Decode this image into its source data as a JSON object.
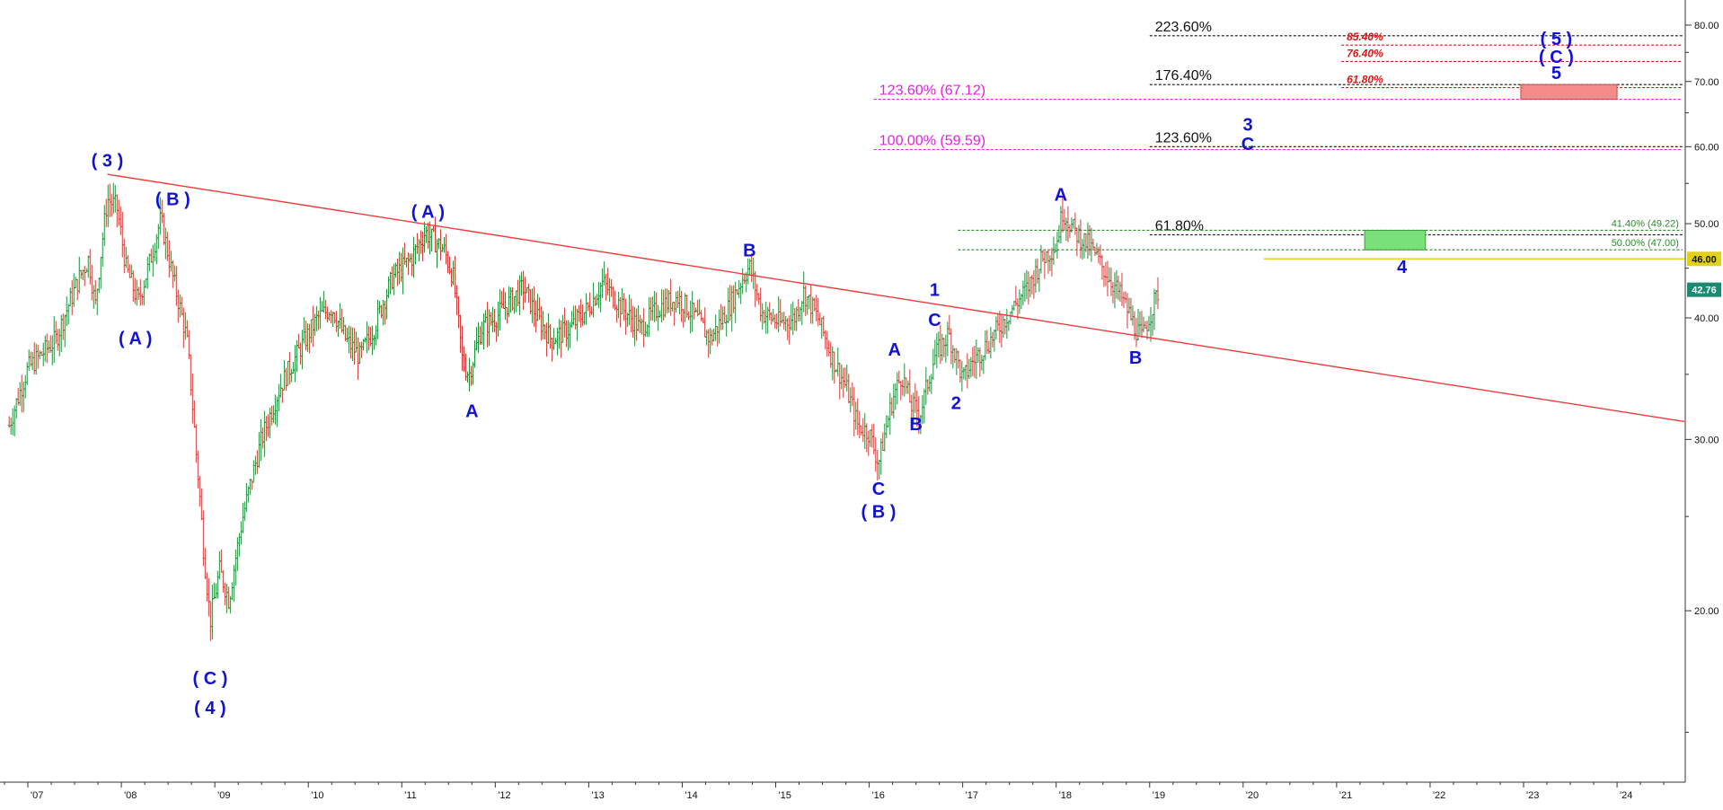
{
  "chart_data": {
    "type": "line",
    "title": "",
    "xlabel": "",
    "ylabel": "",
    "y_log_scale": true,
    "ylim": [
      13.5,
      84
    ],
    "xlim": [
      2006.75,
      2024.72
    ],
    "grid": false,
    "colors": {
      "wave_label": "#1212d4",
      "trendline": "#ee3b3b",
      "fib_black": "#111111",
      "fib_magenta": "#e21fe2",
      "fib_red": "#e01414",
      "fib_green": "#2d8a2d",
      "support": "#e0d21a",
      "last_price_bg": "#1c8a70",
      "up_bar": "#1e8f3e",
      "down_bar": "#d23a3a",
      "target_box_red": "#f48a8a",
      "target_box_green": "#7ae07a"
    },
    "x_ticks": [
      {
        "label": "'07",
        "x": 2007.0
      },
      {
        "label": "'08",
        "x": 2008.0
      },
      {
        "label": "'09",
        "x": 2009.0
      },
      {
        "label": "'10",
        "x": 2010.0
      },
      {
        "label": "'11",
        "x": 2011.0
      },
      {
        "label": "'12",
        "x": 2012.0
      },
      {
        "label": "'13",
        "x": 2013.0
      },
      {
        "label": "'14",
        "x": 2014.0
      },
      {
        "label": "'15",
        "x": 2015.0
      },
      {
        "label": "'16",
        "x": 2016.0
      },
      {
        "label": "'17",
        "x": 2017.0
      },
      {
        "label": "'18",
        "x": 2018.0
      },
      {
        "label": "'19",
        "x": 2019.0
      },
      {
        "label": "'20",
        "x": 2020.0
      },
      {
        "label": "'21",
        "x": 2021.0
      },
      {
        "label": "'22",
        "x": 2022.0
      },
      {
        "label": "'23",
        "x": 2023.0
      },
      {
        "label": "'24",
        "x": 2024.0
      }
    ],
    "y_ticks": [
      {
        "label": "20.00",
        "y": 20
      },
      {
        "label": "30.00",
        "y": 30
      },
      {
        "label": "40.00",
        "y": 40
      },
      {
        "label": "50.00",
        "y": 50
      },
      {
        "label": "60.00",
        "y": 60
      },
      {
        "label": "70.00",
        "y": 70
      },
      {
        "label": "80.00",
        "y": 80
      }
    ],
    "price_anchors": [
      [
        2006.8,
        31
      ],
      [
        2007.0,
        35.5
      ],
      [
        2007.3,
        38
      ],
      [
        2007.55,
        44
      ],
      [
        2007.65,
        46
      ],
      [
        2007.72,
        41
      ],
      [
        2007.85,
        53
      ],
      [
        2007.95,
        52
      ],
      [
        2008.05,
        45
      ],
      [
        2008.18,
        41.5
      ],
      [
        2008.3,
        45.5
      ],
      [
        2008.42,
        50.5
      ],
      [
        2008.55,
        44
      ],
      [
        2008.7,
        38
      ],
      [
        2008.8,
        29
      ],
      [
        2008.88,
        23
      ],
      [
        2008.95,
        19.5
      ],
      [
        2009.05,
        22
      ],
      [
        2009.15,
        20.5
      ],
      [
        2009.3,
        25
      ],
      [
        2009.5,
        30
      ],
      [
        2009.7,
        34
      ],
      [
        2009.9,
        37
      ],
      [
        2010.1,
        40
      ],
      [
        2010.25,
        41
      ],
      [
        2010.4,
        38
      ],
      [
        2010.55,
        36.5
      ],
      [
        2010.7,
        39
      ],
      [
        2010.9,
        44
      ],
      [
        2011.1,
        46
      ],
      [
        2011.25,
        49
      ],
      [
        2011.45,
        47
      ],
      [
        2011.55,
        44
      ],
      [
        2011.65,
        36
      ],
      [
        2011.72,
        35
      ],
      [
        2011.85,
        39
      ],
      [
        2012.0,
        40
      ],
      [
        2012.15,
        41.5
      ],
      [
        2012.3,
        43
      ],
      [
        2012.45,
        40
      ],
      [
        2012.6,
        38
      ],
      [
        2012.8,
        39
      ],
      [
        2013.0,
        41
      ],
      [
        2013.15,
        43.5
      ],
      [
        2013.35,
        41
      ],
      [
        2013.55,
        39
      ],
      [
        2013.75,
        41
      ],
      [
        2013.95,
        42
      ],
      [
        2014.15,
        40
      ],
      [
        2014.3,
        38
      ],
      [
        2014.5,
        41
      ],
      [
        2014.65,
        44
      ],
      [
        2014.72,
        45.2
      ],
      [
        2014.85,
        40.5
      ],
      [
        2015.05,
        39.5
      ],
      [
        2015.2,
        40
      ],
      [
        2015.3,
        42.5
      ],
      [
        2015.45,
        40
      ],
      [
        2015.6,
        36.5
      ],
      [
        2015.75,
        34
      ],
      [
        2015.88,
        31
      ],
      [
        2016.0,
        30.5
      ],
      [
        2016.1,
        28.3
      ],
      [
        2016.25,
        33
      ],
      [
        2016.35,
        35
      ],
      [
        2016.45,
        32.5
      ],
      [
        2016.55,
        32
      ],
      [
        2016.7,
        36.5
      ],
      [
        2016.85,
        38.5
      ],
      [
        2016.95,
        36
      ],
      [
        2017.0,
        34.5
      ],
      [
        2017.1,
        36
      ],
      [
        2017.3,
        38
      ],
      [
        2017.5,
        40.5
      ],
      [
        2017.7,
        43
      ],
      [
        2017.85,
        46
      ],
      [
        2018.0,
        47.5
      ],
      [
        2018.07,
        51.5
      ],
      [
        2018.2,
        49
      ],
      [
        2018.35,
        47.5
      ],
      [
        2018.5,
        45
      ],
      [
        2018.7,
        42
      ],
      [
        2018.85,
        39
      ],
      [
        2018.92,
        38.2
      ],
      [
        2019.05,
        41.5
      ],
      [
        2019.1,
        42.76
      ]
    ],
    "trendline": {
      "from": {
        "x": 2007.85,
        "y": 56.2
      },
      "to": {
        "x": 2024.72,
        "y": 31.3
      }
    },
    "wave_labels": [
      {
        "text": "( 3 )",
        "x": 2007.85,
        "y": 57.9
      },
      {
        "text": "( B )",
        "x": 2008.55,
        "y": 52.8
      },
      {
        "text": "( A )",
        "x": 2008.15,
        "y": 38.0
      },
      {
        "text": "( C )",
        "x": 2008.95,
        "y": 17.0
      },
      {
        "text": "( 4 )",
        "x": 2008.95,
        "y": 15.85
      },
      {
        "text": "( A )",
        "x": 2011.28,
        "y": 51.3
      },
      {
        "text": "A",
        "x": 2011.75,
        "y": 32.0
      },
      {
        "text": "B",
        "x": 2014.72,
        "y": 46.8
      },
      {
        "text": "1",
        "x": 2016.7,
        "y": 42.6
      },
      {
        "text": "C",
        "x": 2016.7,
        "y": 39.7
      },
      {
        "text": "A",
        "x": 2016.27,
        "y": 37.0
      },
      {
        "text": "B",
        "x": 2016.5,
        "y": 31.0
      },
      {
        "text": "2",
        "x": 2016.93,
        "y": 32.6
      },
      {
        "text": "C",
        "x": 2016.1,
        "y": 26.6
      },
      {
        "text": "( B )",
        "x": 2016.1,
        "y": 25.2
      },
      {
        "text": "A",
        "x": 2018.05,
        "y": 53.4
      },
      {
        "text": "B",
        "x": 2018.85,
        "y": 36.3
      },
      {
        "text": "3",
        "x": 2020.05,
        "y": 63.0
      },
      {
        "text": "C",
        "x": 2020.05,
        "y": 60.2
      },
      {
        "text": "4",
        "x": 2021.7,
        "y": 45.0
      },
      {
        "text": "( 5 )",
        "x": 2023.35,
        "y": 77.2
      },
      {
        "text": "( C )",
        "x": 2023.35,
        "y": 74.0
      },
      {
        "text": "5",
        "x": 2023.35,
        "y": 71.2
      }
    ],
    "fib_lines": [
      {
        "label": "223.60%",
        "y": 78.0,
        "x_start": 2019.0,
        "x_end": 2024.7,
        "color": "fib_black",
        "size": "normal"
      },
      {
        "label": "85.40%",
        "y": 76.3,
        "x_start": 2021.05,
        "x_end": 2024.7,
        "color": "fib_red",
        "size": "small"
      },
      {
        "label": "76.40%",
        "y": 73.4,
        "x_start": 2021.05,
        "x_end": 2024.7,
        "color": "fib_red",
        "size": "small"
      },
      {
        "label": "176.40%",
        "y": 69.5,
        "x_start": 2019.0,
        "x_end": 2024.7,
        "color": "fib_black",
        "size": "normal"
      },
      {
        "label": "61.80%",
        "y": 69.0,
        "x_start": 2021.05,
        "x_end": 2024.7,
        "color": "fib_red",
        "size": "small"
      },
      {
        "label": "123.60% (67.12)",
        "y": 67.12,
        "x_start": 2016.05,
        "x_end": 2024.7,
        "color": "fib_magenta",
        "size": "normal"
      },
      {
        "label": "123.60%",
        "y": 60.0,
        "x_start": 2019.0,
        "x_end": 2024.7,
        "color": "fib_black",
        "size": "normal"
      },
      {
        "label": "100.00% (59.59)",
        "y": 59.59,
        "x_start": 2016.05,
        "x_end": 2024.7,
        "color": "fib_magenta",
        "size": "normal"
      },
      {
        "label": "61.80%",
        "y": 48.7,
        "x_start": 2019.0,
        "x_end": 2024.7,
        "color": "fib_black",
        "size": "normal"
      },
      {
        "label": "41.40% (49.22)",
        "y": 49.22,
        "x_start": 2016.95,
        "x_end": 2024.7,
        "color": "fib_green",
        "size": "tiny",
        "label_side": "right"
      },
      {
        "label": "50.00% (47.00)",
        "y": 47.0,
        "x_start": 2016.95,
        "x_end": 2024.7,
        "color": "fib_green",
        "size": "tiny",
        "label_side": "right",
        "label_extent_x": 2019.0
      }
    ],
    "support_line": {
      "label": "46.00",
      "y": 46.0,
      "x_start": 2020.22,
      "x_end": 2024.72
    },
    "last_price": {
      "label": "42.76",
      "y": 42.76
    },
    "target_boxes": [
      {
        "color": "target_box_red",
        "x0": 2022.97,
        "x1": 2024.0,
        "y0": 67.12,
        "y1": 69.5
      },
      {
        "color": "target_box_green",
        "x0": 2021.3,
        "x1": 2021.95,
        "y0": 47.0,
        "y1": 49.22
      }
    ]
  }
}
